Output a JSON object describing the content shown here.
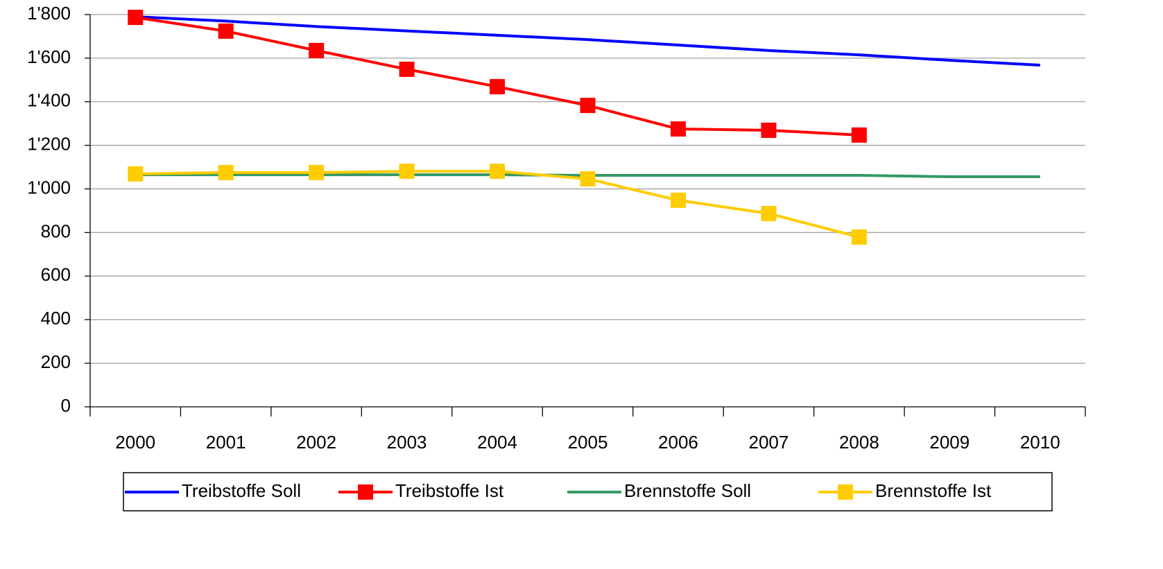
{
  "chart_data": {
    "type": "line",
    "categories": [
      "2000",
      "2001",
      "2002",
      "2003",
      "2004",
      "2005",
      "2006",
      "2007",
      "2008",
      "2009",
      "2010"
    ],
    "series": [
      {
        "name": "Treibstoffe Soll",
        "color": "#0000ff",
        "marker": false,
        "values": [
          1790,
          1770,
          1745,
          1725,
          1705,
          1685,
          1660,
          1635,
          1615,
          1590,
          1568
        ]
      },
      {
        "name": "Treibstoffe Ist",
        "color": "#ff0000",
        "marker": true,
        "values": [
          1787,
          1724,
          1635,
          1549,
          1469,
          1383,
          1275,
          1269,
          1247,
          null,
          null
        ]
      },
      {
        "name": "Brennstoffe Soll",
        "color": "#339966",
        "marker": false,
        "values": [
          1065,
          1065,
          1065,
          1065,
          1065,
          1062,
          1062,
          1062,
          1062,
          1056,
          1056
        ]
      },
      {
        "name": "Brennstoffe Ist",
        "color": "#ffcc00",
        "marker": true,
        "values": [
          1069,
          1075,
          1075,
          1081,
          1081,
          1046,
          948,
          887,
          779,
          null,
          null
        ]
      }
    ],
    "ylim": [
      0,
      1800
    ],
    "yticks": [
      0,
      200,
      400,
      600,
      800,
      {
        "value": 1000,
        "label": "1'000"
      },
      {
        "value": 1200,
        "label": "1'200"
      },
      {
        "value": 1400,
        "label": "1'400"
      },
      {
        "value": 1600,
        "label": "1'600"
      },
      {
        "value": 1800,
        "label": "1'800"
      }
    ],
    "grid": true,
    "legend": "bottom"
  }
}
